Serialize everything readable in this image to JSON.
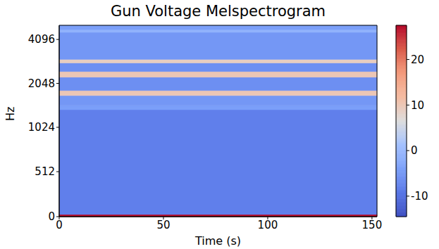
{
  "chart_data": {
    "type": "heatmap",
    "title": "Gun Voltage Melspectrogram",
    "x_label": "Time (s)",
    "y_label": "Hz",
    "xlim": [
      0,
      152.4
    ],
    "xticks": [
      0,
      50,
      100,
      150
    ],
    "ylim": [
      0,
      5120
    ],
    "yticks": [
      0,
      512,
      1024,
      2048,
      4096
    ],
    "x_edges": [
      0,
      152.4
    ],
    "y_edges": [
      0,
      25,
      1350,
      1450,
      1690,
      1830,
      2260,
      2470,
      2830,
      2990,
      4580,
      4790,
      5120
    ],
    "cells": [
      [
        27
      ],
      [
        -8
      ],
      [
        -4
      ],
      [
        -5
      ],
      [
        10
      ],
      [
        -6
      ],
      [
        10
      ],
      [
        -6
      ],
      [
        9
      ],
      [
        -5
      ],
      [
        -1
      ],
      [
        -4
      ]
    ],
    "colorbar": {
      "range": [
        -14.5,
        27.5
      ],
      "ticks": [
        -10,
        0,
        10,
        20
      ]
    }
  }
}
